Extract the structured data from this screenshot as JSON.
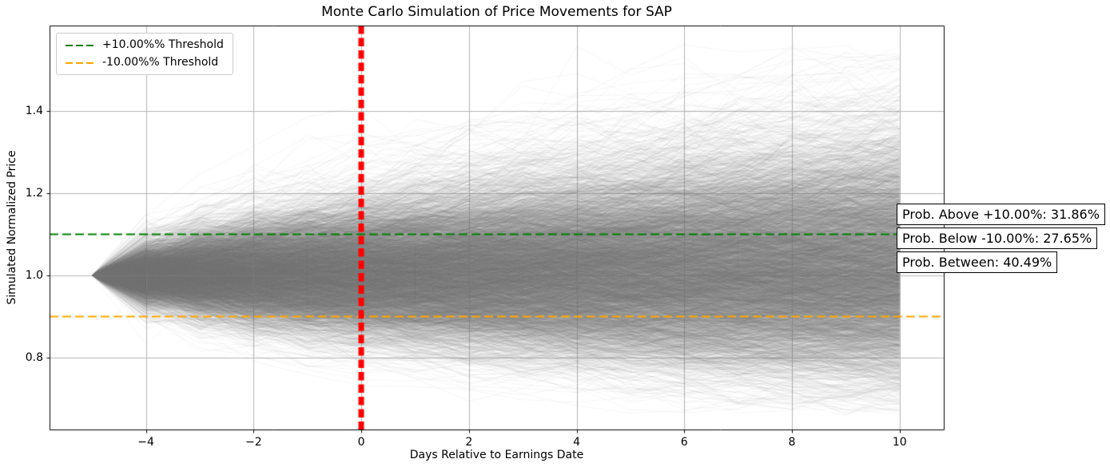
{
  "chart_data": {
    "type": "line",
    "subtype": "monte-carlo-simulation-fan",
    "title": "Monte Carlo Simulation of Price Movements for SAP",
    "xlabel": "Days Relative to Earnings Date",
    "ylabel": "Simulated Normalized Price",
    "xlim": [
      -5.79,
      10.82
    ],
    "ylim": [
      0.6255,
      1.6065
    ],
    "xticks": {
      "values": [
        -4,
        -2,
        0,
        2,
        4,
        6,
        8,
        10
      ],
      "labels": [
        "−4",
        "−2",
        "0",
        "2",
        "4",
        "6",
        "8",
        "10"
      ]
    },
    "yticks": {
      "values": [
        0.8,
        1.0,
        1.2,
        1.4
      ],
      "labels": [
        "0.8",
        "1.0",
        "1.2",
        "1.4"
      ]
    },
    "grid": true,
    "grid_color": "#b4b4b4",
    "upper_threshold": {
      "value": 1.1,
      "color": "#008000",
      "style": "dashed",
      "label": "+10.00%% Threshold"
    },
    "lower_threshold": {
      "value": 0.9,
      "color": "#ffa500",
      "style": "dashed",
      "label": "-10.00%% Threshold"
    },
    "event_vline": {
      "x": 0,
      "color": "#ff0000",
      "style": "dashed",
      "linewidth": 7
    },
    "legend_position": "upper left",
    "probabilities": {
      "above_pct": 31.86,
      "below_pct": 27.65,
      "between_pct": 40.49
    },
    "annotations": [
      {
        "text": "Prob. Above +10.00%: 31.86%"
      },
      {
        "text": "Prob. Below -10.00%: 27.65%"
      },
      {
        "text": "Prob. Between: 40.49%"
      }
    ],
    "simulation_fan": {
      "start_day": -5,
      "end_day": 10,
      "steps": 15,
      "start_value": 1.0,
      "n_paths": 5200,
      "path_color": "#7f7f7f",
      "path_alpha": 0.085,
      "path_linewidth": 0.8,
      "drift_per_step": 0.0015,
      "sigma_per_step_core": 0.0345,
      "sigma_per_step_tail": 0.048,
      "tail_fraction": 0.125,
      "seed": 42
    }
  }
}
